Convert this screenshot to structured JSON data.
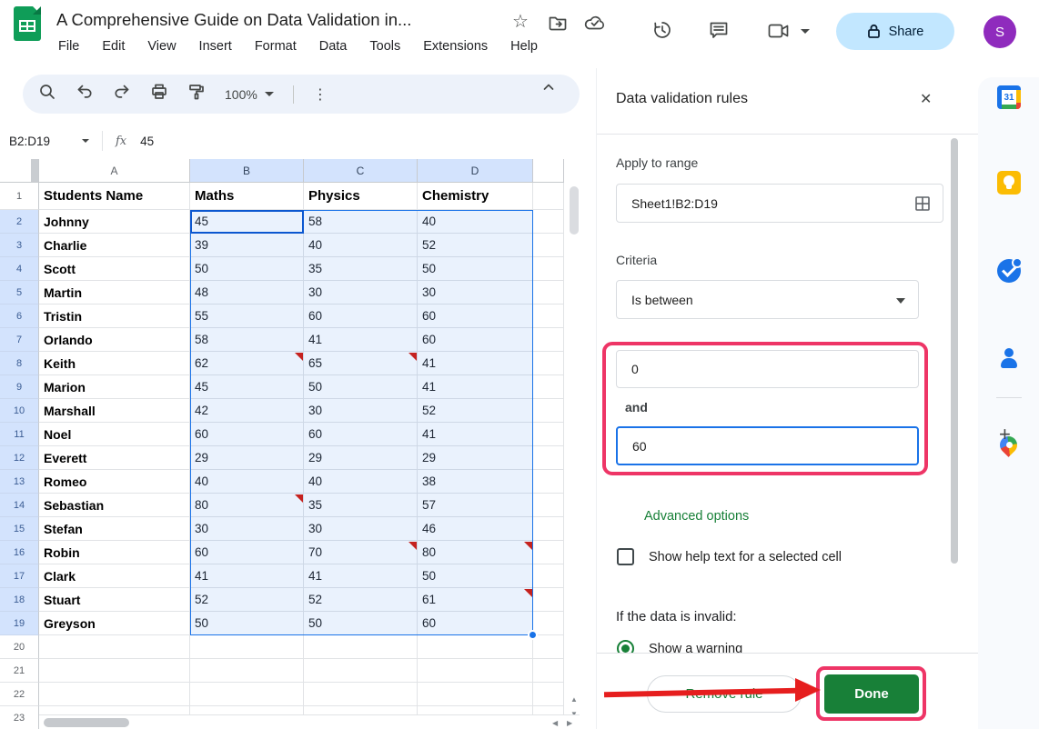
{
  "topbar": {
    "doc_title": "A Comprehensive Guide on Data Validation in...",
    "menu_items": [
      "File",
      "Edit",
      "View",
      "Insert",
      "Format",
      "Data",
      "Tools",
      "Extensions",
      "Help"
    ],
    "share_label": "Share",
    "avatar_initial": "S"
  },
  "icons": {
    "star": "☆",
    "close": "✕",
    "kebab": "⋮",
    "plus": "+",
    "up_arrow": "▲",
    "down_arrow": "▼",
    "left_arrow": "◀",
    "right_arrow": "▶",
    "calendar_day": "31"
  },
  "toolbar": {
    "zoom_value": "100%"
  },
  "formula_bar": {
    "name_box_value": "B2:D19",
    "fx_label": "fx",
    "cell_value": "45"
  },
  "grid": {
    "column_headers": [
      "A",
      "B",
      "C",
      "D"
    ],
    "selected_columns": [
      "B",
      "C",
      "D"
    ],
    "header_row": {
      "row_number": "1",
      "cells": [
        "Students Name",
        "Maths",
        "Physics",
        "Chemistry"
      ]
    },
    "rows": [
      [
        2,
        "Johnny",
        "45",
        "58",
        "40"
      ],
      [
        3,
        "Charlie",
        "39",
        "40",
        "52"
      ],
      [
        4,
        "Scott",
        "50",
        "35",
        "50"
      ],
      [
        5,
        "Martin",
        "48",
        "30",
        "30"
      ],
      [
        6,
        "Tristin",
        "55",
        "60",
        "60"
      ],
      [
        7,
        "Orlando",
        "58",
        "41",
        "60"
      ],
      [
        8,
        "Keith",
        "62",
        "65",
        "41"
      ],
      [
        9,
        "Marion",
        "45",
        "50",
        "41"
      ],
      [
        10,
        "Marshall",
        "42",
        "30",
        "52"
      ],
      [
        11,
        "Noel",
        "60",
        "60",
        "41"
      ],
      [
        12,
        "Everett",
        "29",
        "29",
        "29"
      ],
      [
        13,
        "Romeo",
        "40",
        "40",
        "38"
      ],
      [
        14,
        "Sebastian",
        "80",
        "35",
        "57"
      ],
      [
        15,
        "Stefan",
        "30",
        "30",
        "46"
      ],
      [
        16,
        "Robin",
        "60",
        "70",
        "80"
      ],
      [
        17,
        "Clark",
        "41",
        "41",
        "50"
      ],
      [
        18,
        "Stuart",
        "52",
        "52",
        "61"
      ],
      [
        19,
        "Greyson",
        "50",
        "50",
        "60"
      ]
    ],
    "note_markers": [
      {
        "row": 8,
        "col": "B"
      },
      {
        "row": 8,
        "col": "C"
      },
      {
        "row": 14,
        "col": "B"
      },
      {
        "row": 16,
        "col": "C"
      },
      {
        "row": 16,
        "col": "D"
      },
      {
        "row": 18,
        "col": "D"
      }
    ],
    "empty_row_numbers": [
      "20",
      "21",
      "22",
      "23"
    ]
  },
  "panel": {
    "title": "Data validation rules",
    "apply_to_range_label": "Apply to range",
    "range_value": "Sheet1!B2:D19",
    "criteria_label": "Criteria",
    "criteria_value": "Is between",
    "min_value": "0",
    "between_connector_label": "and",
    "max_value": "60",
    "advanced_options_label": "Advanced options",
    "help_text_checkbox_label": "Show help text for a selected cell",
    "invalid_data_label": "If the data is invalid:",
    "invalid_option_selected_label": "Show a warning",
    "remove_rule_label": "Remove rule",
    "done_label": "Done"
  },
  "colors": {
    "accent_blue": "#1a73e8",
    "active_cell_blue": "#0b57d0",
    "selection_header_blue": "#d3e3fd",
    "google_green": "#188038",
    "note_marker_red": "#c5221f",
    "annotation_pink": "#ee3566",
    "annotation_arrow_red": "#e61e1e",
    "share_pill_blue": "#c2e7ff",
    "avatar_purple": "#8f2bbd"
  }
}
